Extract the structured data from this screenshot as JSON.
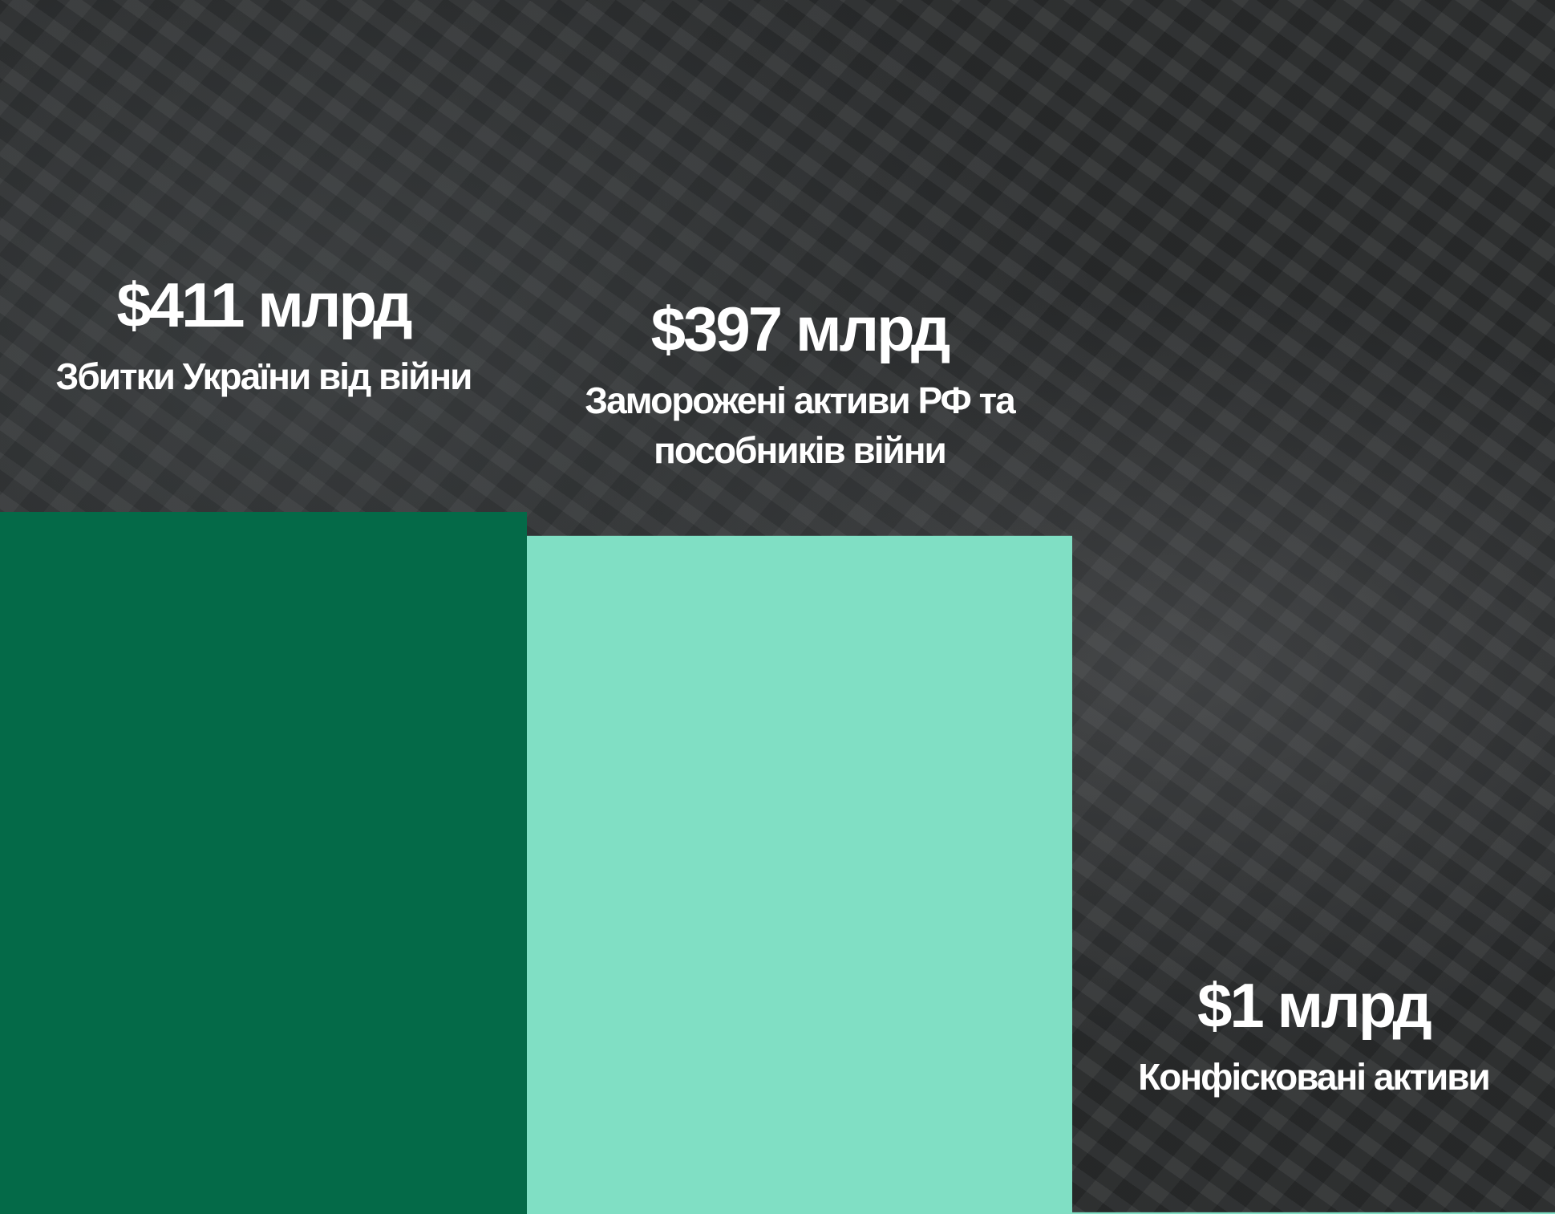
{
  "chart_data": {
    "type": "bar",
    "categories": [
      "Збитки України від війни",
      "Заморожені активи РФ та пособників війни",
      "Конфісковані активи"
    ],
    "values": [
      411,
      397,
      1
    ],
    "value_labels": [
      "$411 млрд",
      "$397 млрд",
      "$1 млрд"
    ],
    "colors": [
      "#046a48",
      "#80dfc4",
      "#80dfc4"
    ]
  }
}
